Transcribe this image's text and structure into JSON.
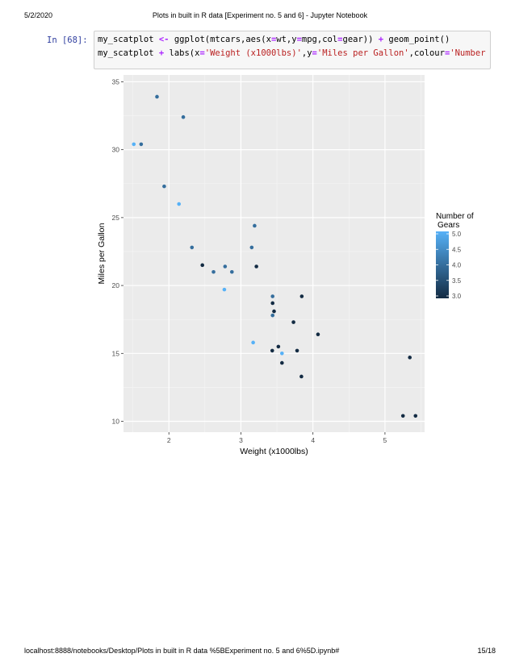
{
  "header": {
    "date": "5/2/2020",
    "title": "Plots in built in R data [Experiment no. 5 and 6] - Jupyter Notebook"
  },
  "footer": {
    "url": "localhost:8888/notebooks/Desktop/Plots in built in R data %5BExperiment no. 5 and 6%5D.ipynb#",
    "page": "15/18"
  },
  "cell": {
    "prompt": "In [68]:",
    "line1": {
      "a": "my_scatplot ",
      "op1": "<-",
      "b": " ggplot(mtcars,aes(x",
      "op2": "=",
      "c": "wt,y",
      "op3": "=",
      "d": "mpg,col",
      "op4": "=",
      "e": "gear)) ",
      "op5": "+",
      "f": " geom_point()"
    },
    "line2": {
      "a": "my_scatplot ",
      "op1": "+",
      "b": " labs(x",
      "op2": "=",
      "s1": "'Weight (x1000lbs)'",
      "c": ",y",
      "op3": "=",
      "s2": "'Miles per Gallon'",
      "d": ",colour",
      "op4": "=",
      "s3": "'Number of\\"
    }
  },
  "chart_data": {
    "type": "scatter",
    "xlabel": "Weight (x1000lbs)",
    "ylabel": "Miles per Gallon",
    "xlim": [
      1.37,
      5.55
    ],
    "ylim": [
      9.2,
      35.5
    ],
    "xticks": [
      2,
      3,
      4,
      5
    ],
    "yticks": [
      10,
      15,
      20,
      25,
      30,
      35
    ],
    "grid": true,
    "panel_background": "#ebebeb",
    "legend": {
      "title": "Number of\nGears",
      "placement": "right",
      "ticks": [
        "5.0",
        "4.5",
        "4.0",
        "3.5",
        "3.0"
      ],
      "range": [
        3,
        5
      ],
      "color_low": "#132b43",
      "color_high": "#56b1f7"
    },
    "points": [
      {
        "x": 2.62,
        "y": 21.0,
        "gear": 4
      },
      {
        "x": 2.875,
        "y": 21.0,
        "gear": 4
      },
      {
        "x": 2.32,
        "y": 22.8,
        "gear": 4
      },
      {
        "x": 3.215,
        "y": 21.4,
        "gear": 3
      },
      {
        "x": 3.44,
        "y": 18.7,
        "gear": 3
      },
      {
        "x": 3.46,
        "y": 18.1,
        "gear": 3
      },
      {
        "x": 3.57,
        "y": 14.3,
        "gear": 3
      },
      {
        "x": 3.19,
        "y": 24.4,
        "gear": 4
      },
      {
        "x": 3.15,
        "y": 22.8,
        "gear": 4
      },
      {
        "x": 3.44,
        "y": 19.2,
        "gear": 4
      },
      {
        "x": 3.44,
        "y": 17.8,
        "gear": 4
      },
      {
        "x": 4.07,
        "y": 16.4,
        "gear": 3
      },
      {
        "x": 3.73,
        "y": 17.3,
        "gear": 3
      },
      {
        "x": 3.78,
        "y": 15.2,
        "gear": 3
      },
      {
        "x": 5.25,
        "y": 10.4,
        "gear": 3
      },
      {
        "x": 5.424,
        "y": 10.4,
        "gear": 3
      },
      {
        "x": 5.345,
        "y": 14.7,
        "gear": 3
      },
      {
        "x": 2.2,
        "y": 32.4,
        "gear": 4
      },
      {
        "x": 1.615,
        "y": 30.4,
        "gear": 4
      },
      {
        "x": 1.835,
        "y": 33.9,
        "gear": 4
      },
      {
        "x": 2.465,
        "y": 21.5,
        "gear": 3
      },
      {
        "x": 3.52,
        "y": 15.5,
        "gear": 3
      },
      {
        "x": 3.435,
        "y": 15.2,
        "gear": 3
      },
      {
        "x": 3.84,
        "y": 13.3,
        "gear": 3
      },
      {
        "x": 3.845,
        "y": 19.2,
        "gear": 3
      },
      {
        "x": 1.935,
        "y": 27.3,
        "gear": 4
      },
      {
        "x": 2.14,
        "y": 26.0,
        "gear": 5
      },
      {
        "x": 1.513,
        "y": 30.4,
        "gear": 5
      },
      {
        "x": 3.17,
        "y": 15.8,
        "gear": 5
      },
      {
        "x": 2.77,
        "y": 19.7,
        "gear": 5
      },
      {
        "x": 3.57,
        "y": 15.0,
        "gear": 5
      },
      {
        "x": 2.78,
        "y": 21.4,
        "gear": 4
      }
    ]
  }
}
